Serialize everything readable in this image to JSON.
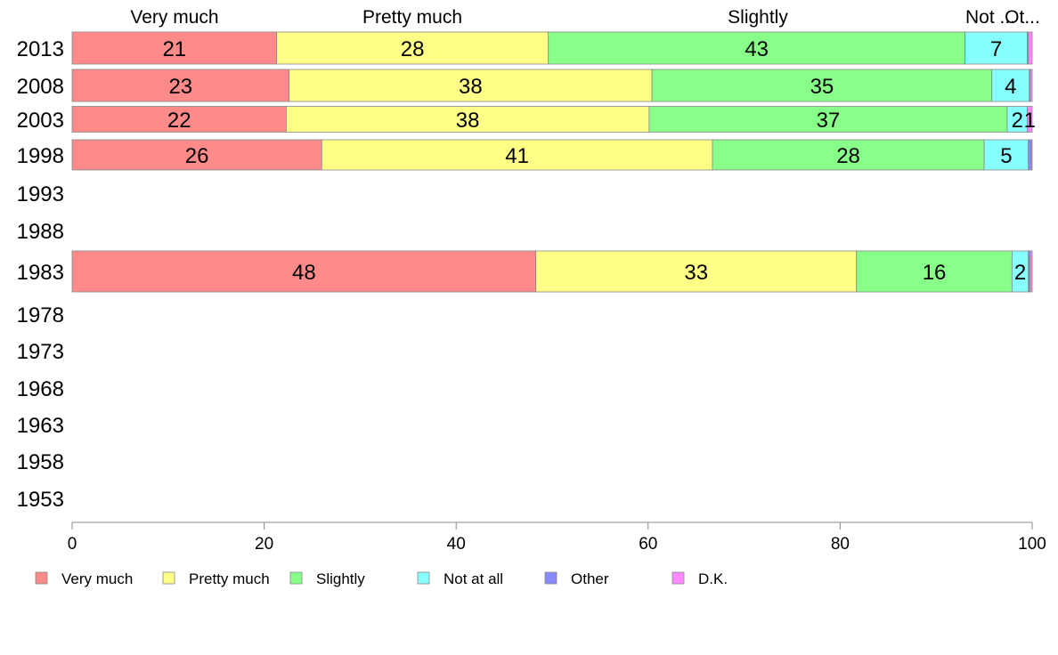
{
  "chart_data": {
    "type": "bar",
    "orientation": "horizontal",
    "stacked": true,
    "top_labels": [
      "Very much",
      "Pretty much",
      "Slightly",
      "Not ...",
      "Ot..."
    ],
    "categories": [
      "2013",
      "2008",
      "2003",
      "1998",
      "1993",
      "1988",
      "1983",
      "1978",
      "1973",
      "1968",
      "1963",
      "1958",
      "1953"
    ],
    "series": [
      {
        "name": "Very much",
        "color": "#ff8a8a",
        "values": [
          21.3,
          22.6,
          22.3,
          26.0,
          null,
          null,
          48.3,
          null,
          null,
          null,
          null,
          null,
          null
        ],
        "labels": [
          "21",
          "23",
          "22",
          "26",
          "",
          "",
          "48",
          "",
          "",
          "",
          "",
          "",
          ""
        ]
      },
      {
        "name": "Pretty much",
        "color": "#ffff88",
        "values": [
          28.3,
          37.8,
          37.8,
          40.7,
          null,
          null,
          33.4,
          null,
          null,
          null,
          null,
          null,
          null
        ],
        "labels": [
          "28",
          "38",
          "38",
          "41",
          "",
          "",
          "33",
          "",
          "",
          "",
          "",
          "",
          ""
        ]
      },
      {
        "name": "Slightly",
        "color": "#88ff88",
        "values": [
          43.4,
          35.4,
          37.3,
          28.3,
          null,
          null,
          16.2,
          null,
          null,
          null,
          null,
          null,
          null
        ],
        "labels": [
          "43",
          "35",
          "37",
          "28",
          "",
          "",
          "16",
          "",
          "",
          "",
          "",
          "",
          ""
        ]
      },
      {
        "name": "Not at all",
        "color": "#88ffff",
        "values": [
          6.5,
          3.9,
          2.1,
          4.6,
          null,
          null,
          1.7,
          null,
          null,
          null,
          null,
          null,
          null
        ],
        "labels": [
          "7",
          "4",
          "2",
          "5",
          "",
          "",
          "2",
          "",
          "",
          "",
          "",
          "",
          ""
        ]
      },
      {
        "name": "Other",
        "color": "#8888ff",
        "values": [
          0.1,
          0.1,
          0.0,
          0.3,
          null,
          null,
          0.2,
          null,
          null,
          null,
          null,
          null,
          null
        ],
        "labels": [
          "",
          "",
          "",
          "",
          "",
          "",
          "",
          "",
          "",
          "",
          "",
          "",
          ""
        ]
      },
      {
        "name": "D.K.",
        "color": "#ff88ff",
        "values": [
          0.4,
          0.2,
          0.5,
          0.1,
          null,
          null,
          0.2,
          null,
          null,
          null,
          null,
          null,
          null
        ],
        "labels": [
          "",
          "",
          "1",
          "",
          "",
          "",
          "",
          "",
          "",
          "",
          "",
          "",
          ""
        ]
      }
    ],
    "xlim": [
      0,
      100
    ],
    "xticks": [
      0,
      20,
      40,
      60,
      80,
      100
    ],
    "legend_position": "bottom",
    "grid": false
  }
}
